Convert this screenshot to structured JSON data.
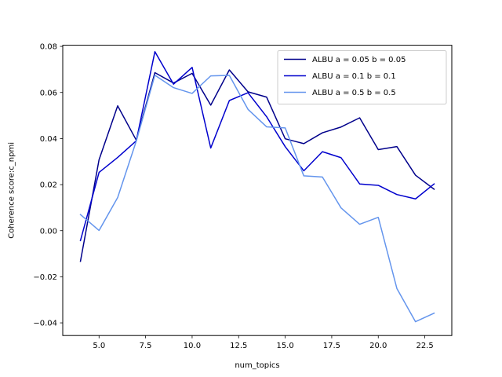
{
  "chart_data": {
    "type": "line",
    "title": "",
    "xlabel": "num_topics",
    "ylabel": "Coherence score:c_npmi",
    "xlim": [
      3.05,
      23.95
    ],
    "ylim": [
      -0.0455,
      0.0805
    ],
    "xticks": [
      5.0,
      7.5,
      10.0,
      12.5,
      15.0,
      17.5,
      20.0,
      22.5
    ],
    "xtick_labels": [
      "5.0",
      "7.5",
      "10.0",
      "12.5",
      "15.0",
      "17.5",
      "20.0",
      "22.5"
    ],
    "yticks": [
      -0.04,
      -0.02,
      0.0,
      0.02,
      0.04,
      0.06,
      0.08
    ],
    "ytick_labels": [
      "−0.04",
      "−0.02",
      "0.00",
      "0.02",
      "0.04",
      "0.06",
      "0.08"
    ],
    "grid": false,
    "legend_position": "top-right",
    "x": [
      4,
      5,
      6,
      7,
      8,
      9,
      10,
      11,
      12,
      13,
      14,
      15,
      16,
      17,
      18,
      19,
      20,
      21,
      22,
      23
    ],
    "series": [
      {
        "name": "ALBU a = 0.05 b = 0.05",
        "color": "#00008b",
        "values": [
          -0.0133,
          0.0308,
          0.0542,
          0.0393,
          0.0686,
          0.0641,
          0.0683,
          0.0545,
          0.0698,
          0.0603,
          0.058,
          0.0399,
          0.0378,
          0.0425,
          0.045,
          0.049,
          0.0352,
          0.0365,
          0.0241,
          0.018
        ]
      },
      {
        "name": "ALBU a = 0.1 b = 0.1",
        "color": "#0000cd",
        "values": [
          -0.0043,
          0.0253,
          0.0318,
          0.039,
          0.0777,
          0.0636,
          0.0709,
          0.0359,
          0.0565,
          0.0599,
          0.0495,
          0.0365,
          0.026,
          0.0343,
          0.0317,
          0.0203,
          0.0197,
          0.0157,
          0.0138,
          0.0203
        ]
      },
      {
        "name": "ALBU a = 0.5 b = 0.5",
        "color": "#6495ed",
        "values": [
          0.007,
          0.0001,
          0.0144,
          0.0389,
          0.0675,
          0.0621,
          0.0596,
          0.0672,
          0.0674,
          0.0527,
          0.0451,
          0.0446,
          0.0238,
          0.0233,
          0.0099,
          0.0028,
          0.0058,
          -0.0251,
          -0.0395,
          -0.0358
        ]
      }
    ]
  }
}
